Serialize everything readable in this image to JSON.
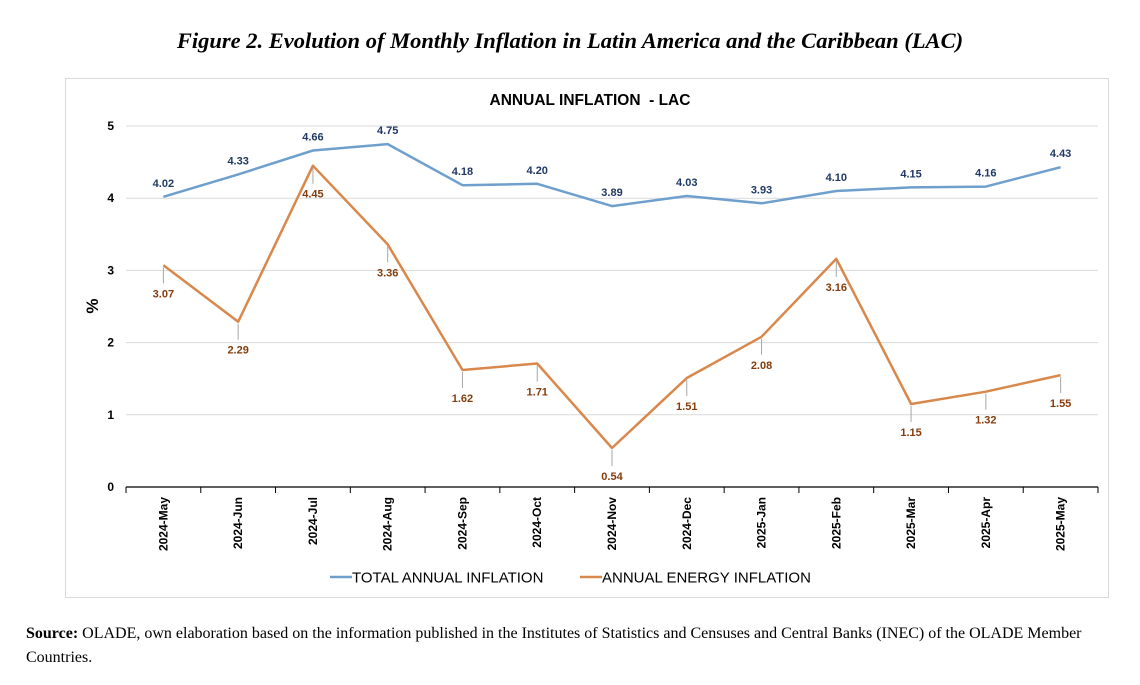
{
  "figure_title": "Figure 2. Evolution of Monthly Inflation in Latin America and the Caribbean (LAC)",
  "source": {
    "label": "Source:",
    "text": " OLADE, own elaboration based on the information published in the Institutes of Statistics and Censuses and Central Banks (INEC) of the OLADE Member Countries."
  },
  "colors": {
    "total": "#6f9fcc",
    "energy": "#d9884c",
    "total_label": "#1f3864",
    "energy_label": "#843c0c",
    "grid": "#d9d9d9"
  },
  "chart_data": {
    "type": "line",
    "title": "ANNUAL INFLATION  - LAC",
    "ylabel": "%",
    "xlabel": "",
    "ylim": [
      0,
      5
    ],
    "yticks": [
      "0",
      "1",
      "2",
      "3",
      "4",
      "5"
    ],
    "grid": true,
    "legend_position": "bottom",
    "categories": [
      "2024-May",
      "2024-Jun",
      "2024-Jul",
      "2024-Aug",
      "2024-Sep",
      "2024-Oct",
      "2024-Nov",
      "2024-Dec",
      "2025-Jan",
      "2025-Feb",
      "2025-Mar",
      "2025-Apr",
      "2025-May"
    ],
    "series": [
      {
        "name": "TOTAL ANNUAL INFLATION",
        "values": [
          4.02,
          4.33,
          4.66,
          4.75,
          4.18,
          4.2,
          3.89,
          4.03,
          3.93,
          4.1,
          4.15,
          4.16,
          4.43
        ],
        "labels": [
          "4.02",
          "4.33",
          "4.66",
          "4.75",
          "4.18",
          "4.20",
          "3.89",
          "4.03",
          "3.93",
          "4.10",
          "4.15",
          "4.16",
          "4.43"
        ]
      },
      {
        "name": "ANNUAL ENERGY INFLATION",
        "values": [
          3.07,
          2.29,
          4.45,
          3.36,
          1.62,
          1.71,
          0.54,
          1.51,
          2.08,
          3.16,
          1.15,
          1.32,
          1.55
        ],
        "labels": [
          "3.07",
          "2.29",
          "4.45",
          "3.36",
          "1.62",
          "1.71",
          "0.54",
          "1.51",
          "2.08",
          "3.16",
          "1.15",
          "1.32",
          "1.55"
        ]
      }
    ]
  }
}
